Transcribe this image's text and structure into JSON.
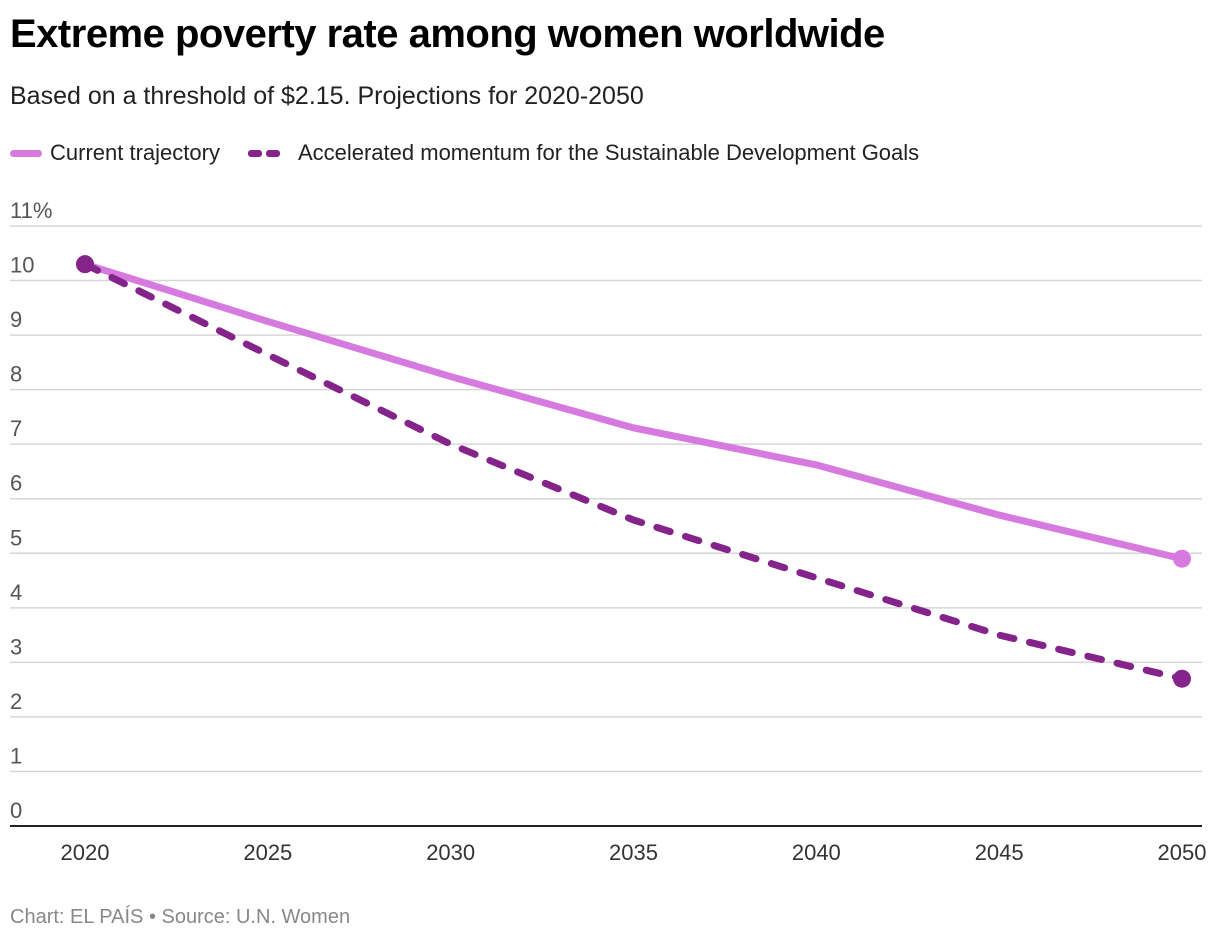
{
  "title": "Extreme poverty rate among women worldwide",
  "subtitle": "Based on a threshold of $2.15. Projections for 2020-2050",
  "footer": "Chart: EL PAÍS • Source: U.N. Women",
  "chart_data": {
    "type": "line",
    "x": [
      2020,
      2025,
      2030,
      2035,
      2040,
      2045,
      2050
    ],
    "x_tick_labels": [
      "2020",
      "2025",
      "2030",
      "2035",
      "2040",
      "2045",
      "2050"
    ],
    "y_tick_labels": [
      "0",
      "1",
      "2",
      "3",
      "4",
      "5",
      "6",
      "7",
      "8",
      "9",
      "10",
      "11%"
    ],
    "ylim": [
      0,
      11
    ],
    "grid": true,
    "legend_position": "top-left",
    "series": [
      {
        "name": "Current trajectory",
        "color": "#d67ae0",
        "style": "solid",
        "values": [
          10.3,
          9.25,
          8.24,
          7.3,
          6.62,
          5.7,
          4.9
        ]
      },
      {
        "name": "Accelerated momentum for the Sustainable Development Goals",
        "color": "#84248b",
        "style": "dashed",
        "values": [
          10.3,
          8.64,
          7.0,
          5.61,
          4.55,
          3.5,
          2.7
        ]
      }
    ]
  }
}
